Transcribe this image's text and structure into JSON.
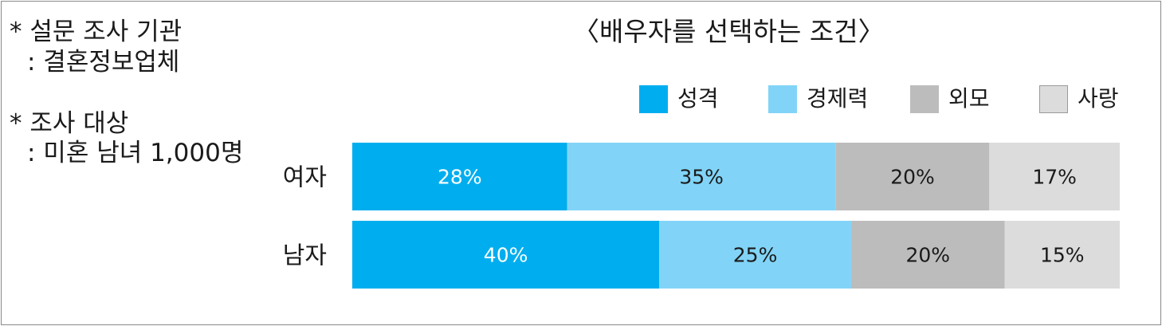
{
  "notes": {
    "agency_title": "* 설문 조사 기관",
    "agency_value": ": 결혼정보업체",
    "target_title": "* 조사 대상",
    "target_value": ": 미혼 남녀 1,000명"
  },
  "chart_data": {
    "type": "bar",
    "orientation": "horizontal",
    "stacked": true,
    "normalized_percent": true,
    "title": "〈배우자를 선택하는 조건〉",
    "categories": [
      "여자",
      "남자"
    ],
    "series": [
      {
        "name": "성격",
        "values": [
          28,
          40
        ],
        "color": "#00aeef",
        "label_color": "#ffffff"
      },
      {
        "name": "경제력",
        "values": [
          35,
          25
        ],
        "color": "#81d4f7",
        "label_color": "#1a1a1a"
      },
      {
        "name": "외모",
        "values": [
          20,
          20
        ],
        "color": "#bdbcbc",
        "label_color": "#1a1a1a"
      },
      {
        "name": "사랑",
        "values": [
          17,
          15
        ],
        "color": "#dcdcdc",
        "label_color": "#1a1a1a"
      }
    ],
    "value_suffix": "%",
    "legend_position": "top-right",
    "grid": false,
    "axes_visible": false
  }
}
